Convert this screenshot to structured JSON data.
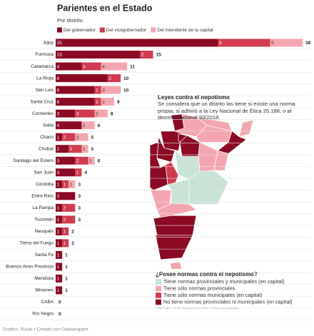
{
  "chart_data": {
    "type": "bar",
    "title": "Parientes en el Estado",
    "subtitle": "Por distrito.",
    "categories": [
      "Jujuy",
      "Formosa",
      "Catamarca",
      "La Rioja",
      "San Luis",
      "Santa Cruz",
      "Corrientes",
      "Salta",
      "Chaco",
      "Chubut",
      "Santiago del Estero",
      "San Juan",
      "Córdoba",
      "Entre Ríos",
      "La Pampa",
      "Tucumán",
      "Neuquén",
      "Tierra del Fuego",
      "Santa Fe",
      "Buenos Aires Provincia",
      "Mendoza",
      "Misiones",
      "CABA",
      "Río Negro"
    ],
    "series": [
      {
        "name": "Del gobernador",
        "color": "#8b0a24",
        "values": [
          25,
          13,
          4,
          8,
          6,
          6,
          3,
          4,
          1,
          2,
          3,
          3,
          1,
          3,
          1,
          1,
          1,
          1,
          1,
          1,
          1,
          1,
          null,
          null
        ]
      },
      {
        "name": "Del vicegobernador",
        "color": "#d13a4f",
        "values": [
          8,
          2,
          3,
          2,
          1,
          1,
          3,
          null,
          2,
          2,
          2,
          1,
          1,
          null,
          2,
          2,
          1,
          1,
          null,
          null,
          null,
          null,
          null,
          null
        ]
      },
      {
        "name": "Del intendente de la capital",
        "color": "#f4a6b0",
        "values": [
          5,
          null,
          4,
          null,
          3,
          2,
          2,
          2,
          2,
          1,
          1,
          null,
          1,
          null,
          null,
          null,
          null,
          null,
          null,
          null,
          null,
          null,
          null,
          null
        ]
      }
    ],
    "totals": [
      38,
      15,
      11,
      10,
      10,
      9,
      8,
      6,
      5,
      5,
      6,
      4,
      3,
      3,
      3,
      3,
      2,
      2,
      1,
      1,
      1,
      1,
      0,
      0
    ],
    "annotation": {
      "title": "Leyes contra el nepotismo",
      "text": "Se considera que un distrito las tiene si existe una norma propia, si adhirió a la Ley Nacional de Ética 25.188, o al decreto nacional 93/2018."
    },
    "map": {
      "title": "¿Posee normas contra el nepotismo?",
      "legend": [
        {
          "label": "Tiene normas provinciales y municipales (en capital)",
          "color": "#c9e3d6"
        },
        {
          "label": "Tiene sólo normas provinciales",
          "color": "#f4a6b0"
        },
        {
          "label": "Tiene sólo normas municipales (en capital)",
          "color": "#d13a4f"
        },
        {
          "label": "No tiene normas provinciales ni municipales (en capital)",
          "color": "#8b0a24"
        }
      ],
      "source": "Mapa: Ruido • Fuente: Relevamiento de Ruido • Creado con Datawrapper"
    },
    "credit": "Gráfico: Ruido • Creado con Datawrapper"
  }
}
